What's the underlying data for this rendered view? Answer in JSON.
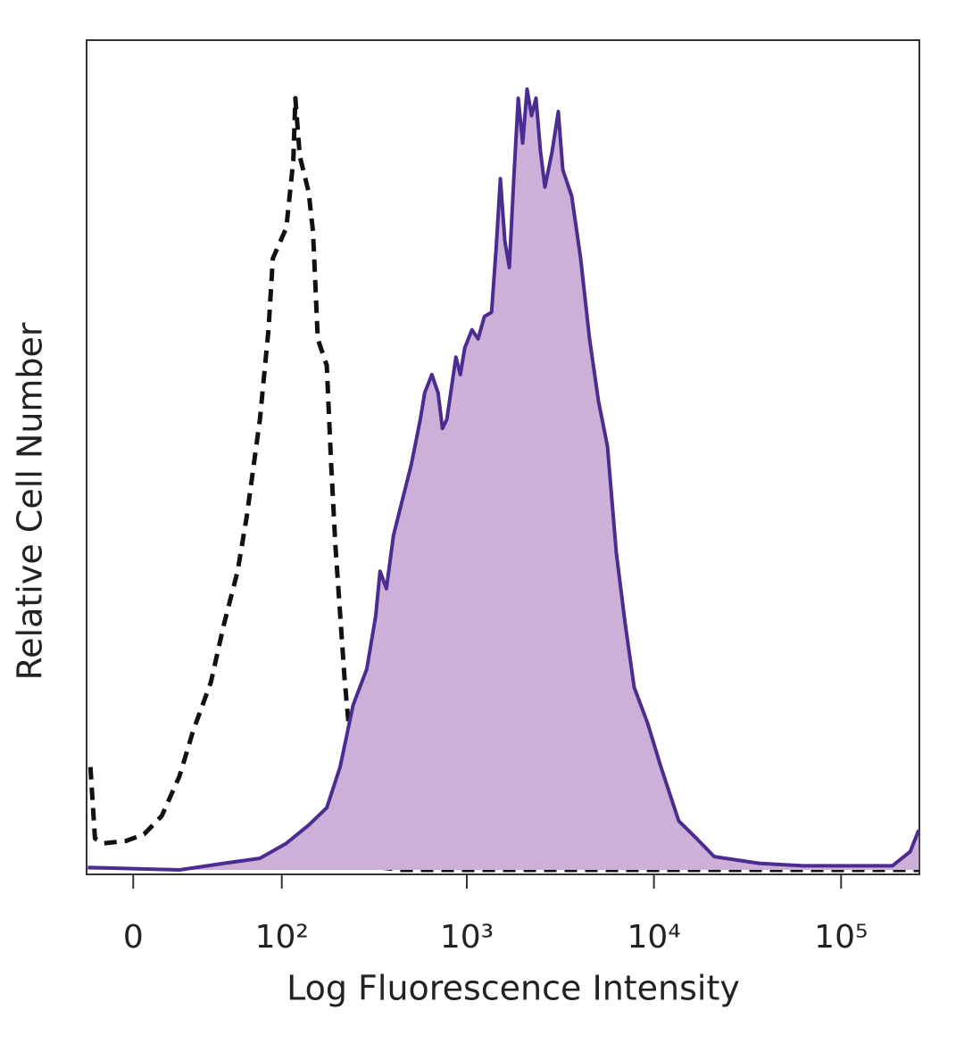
{
  "chart_data": {
    "type": "histogram-overlay",
    "x_label": "Log Fluorescence Intensity",
    "y_label": "Relative Cell Number",
    "xscale": "asinh",
    "xscale_cofactor": 33,
    "xlim": [
      -20,
      262000
    ],
    "xticks": [
      0,
      {
        "value": 100,
        "label": "10²"
      },
      {
        "value": 1000,
        "label": "10³"
      },
      {
        "value": 10000,
        "label": "10⁴"
      },
      {
        "value": 100000,
        "label": "10⁵"
      }
    ],
    "ylim": [
      0,
      100
    ],
    "series": [
      {
        "color": "#111111",
        "dashed": true,
        "x": [
          -18.2,
          -16.1,
          -12.2,
          -2.9,
          4.4,
          11.8,
          19.8,
          26.5,
          36.5,
          45,
          55,
          62.5,
          75,
          84,
          89,
          106,
          116,
          119,
          126,
          141,
          149,
          158,
          177,
          187,
          197,
          221,
          246,
          291,
          343,
          452,
          2343,
          260000
        ],
        "values": [
          12.4,
          3.8,
          3.2,
          3.5,
          4.3,
          6.5,
          11.3,
          16.7,
          22.6,
          29.6,
          36,
          42.5,
          54.3,
          65.1,
          73.7,
          77.4,
          85.5,
          93,
          86,
          81.7,
          76.9,
          64,
          60.8,
          48.9,
          39.2,
          23.1,
          11.3,
          2.7,
          0.3,
          0,
          0,
          0
        ]
      },
      {
        "color": "#4b2c91",
        "fill": "#cdb0d8",
        "x": [
          -19.4,
          19.8,
          45,
          75,
          106,
          141,
          177,
          209,
          246,
          291,
          325,
          343,
          371,
          405,
          452,
          505,
          564,
          595,
          650,
          702,
          741,
          782,
          874,
          923,
          975,
          1065,
          1149,
          1241,
          1355,
          1432,
          1512,
          1597,
          1687,
          1782,
          1882,
          1988,
          2100,
          2218,
          2343,
          2475,
          2615,
          2857,
          3083,
          3257,
          3634,
          4055,
          4530,
          5056,
          5640,
          6296,
          7026,
          7838,
          9243,
          10900,
          13570,
          16880,
          21000,
          36400,
          62900,
          187800,
          234000,
          260000
        ],
        "values": [
          0.3,
          0,
          0.8,
          1.4,
          3.2,
          5.4,
          7.5,
          12.4,
          19.9,
          24.2,
          30.6,
          36,
          33.9,
          40.3,
          44.6,
          48.9,
          54.3,
          57.5,
          59.7,
          57.5,
          53.2,
          54.3,
          61.8,
          59.7,
          62.9,
          65.1,
          64,
          66.7,
          67.2,
          74.7,
          83.3,
          75.8,
          72.6,
          83.3,
          93,
          87.6,
          94.1,
          90.9,
          93,
          86.6,
          82.3,
          86.6,
          91.4,
          84.4,
          81.2,
          73.7,
          64,
          56.5,
          51.1,
          38.2,
          29.6,
          22,
          17.7,
          12.4,
          5.9,
          3.8,
          1.6,
          0.8,
          0.5,
          0.5,
          2.2,
          4.8
        ]
      }
    ]
  }
}
